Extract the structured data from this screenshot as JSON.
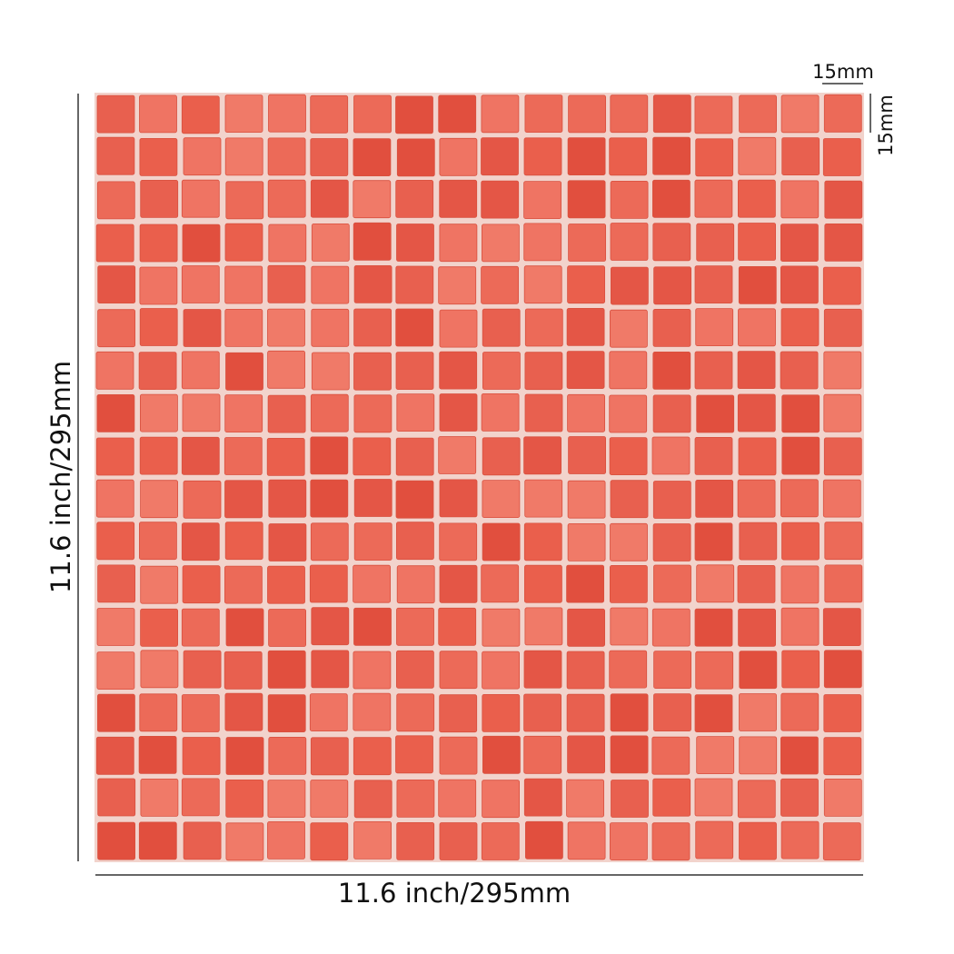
{
  "labels": {
    "tile_width": "15mm",
    "tile_height": "15mm",
    "sheet_height": "11.6 inch/295mm",
    "sheet_width": "11.6 inch/295mm"
  }
}
